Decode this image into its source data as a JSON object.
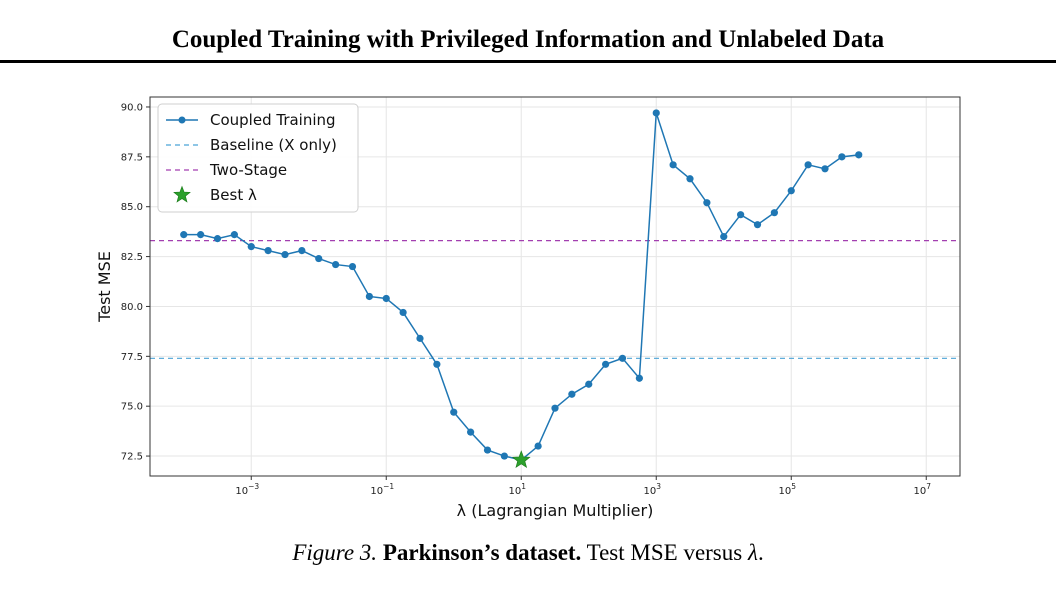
{
  "page": {
    "running_head": "Coupled Training with Privileged Information and Unlabeled Data",
    "caption": {
      "fig_label": "Figure 3.",
      "bold": "Parkinson’s dataset.",
      "text": "Test MSE versus",
      "symbol": "λ",
      "end": "."
    }
  },
  "chart_data": {
    "type": "line",
    "xlabel": "λ (Lagrangian Multiplier)",
    "ylabel": "Test MSE",
    "xscale": "log",
    "xlim_log10": [
      -4.5,
      7.5
    ],
    "ylim": [
      71.5,
      90.5
    ],
    "x_ticks": [
      {
        "exp": -3,
        "base": "10",
        "sup": "−3"
      },
      {
        "exp": -1,
        "base": "10",
        "sup": "−1"
      },
      {
        "exp": 1,
        "base": "10",
        "sup": "1"
      },
      {
        "exp": 3,
        "base": "10",
        "sup": "3"
      },
      {
        "exp": 5,
        "base": "10",
        "sup": "5"
      },
      {
        "exp": 7,
        "base": "10",
        "sup": "7"
      }
    ],
    "y_ticks": [
      72.5,
      75.0,
      77.5,
      80.0,
      82.5,
      85.0,
      87.5,
      90.0
    ],
    "y_tick_labels": [
      "72.5",
      "75.0",
      "77.5",
      "80.0",
      "82.5",
      "85.0",
      "87.5",
      "90.0"
    ],
    "grid": true,
    "legend_position": "top-left",
    "series": [
      {
        "name": "Coupled Training",
        "color": "#1f77b4",
        "style": "line-marker",
        "log10_x": [
          -4,
          -3.75,
          -3.5,
          -3.25,
          -3,
          -2.75,
          -2.5,
          -2.25,
          -2,
          -1.75,
          -1.5,
          -1.25,
          -1,
          -0.75,
          -0.5,
          -0.25,
          0,
          0.25,
          0.5,
          0.75,
          1,
          1.25,
          1.5,
          1.75,
          2,
          2.25,
          2.5,
          2.75,
          3,
          3.25,
          3.5,
          3.75,
          4,
          4.25,
          4.5,
          4.75,
          5,
          5.25,
          5.5,
          5.75,
          6
        ],
        "y": [
          83.6,
          83.6,
          83.4,
          83.6,
          83.0,
          82.8,
          82.6,
          82.8,
          82.4,
          82.1,
          82.0,
          80.5,
          80.4,
          79.7,
          78.4,
          77.1,
          74.7,
          73.7,
          72.8,
          72.5,
          72.3,
          73.0,
          74.9,
          75.6,
          76.1,
          77.1,
          77.4,
          76.4,
          89.7,
          87.1,
          86.4,
          85.2,
          83.5,
          84.6,
          84.1,
          84.7,
          85.8,
          87.1,
          86.9,
          87.5,
          87.6
        ]
      },
      {
        "name": "Baseline (X only)",
        "color": "#4ba3d6",
        "style": "hline-dashed",
        "y": 77.4
      },
      {
        "name": "Two-Stage",
        "color": "#a33fb0",
        "style": "hline-dashed",
        "y": 83.3
      },
      {
        "name": "Best λ",
        "color": "#2ca02c",
        "style": "star-marker",
        "log10_x": 1,
        "y": 72.3
      }
    ]
  }
}
